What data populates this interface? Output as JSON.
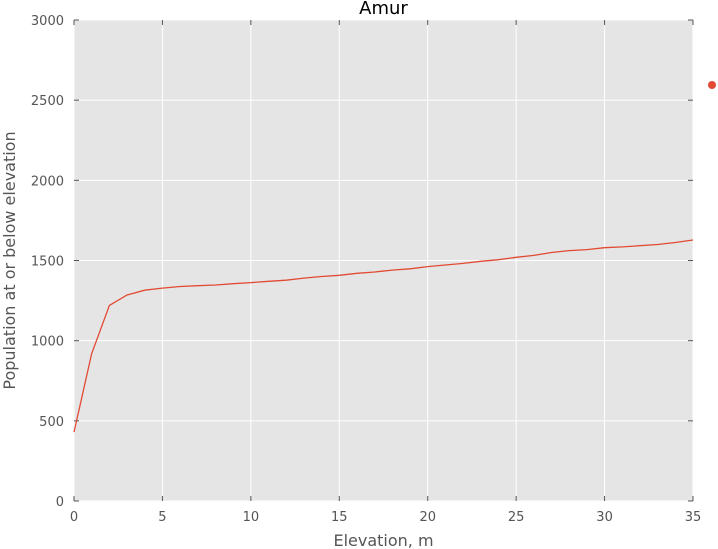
{
  "chart_data": {
    "type": "line",
    "title": "Amur",
    "xlabel": "Elevation, m",
    "ylabel": "Population at or below elevation",
    "xlim": [
      0,
      35
    ],
    "ylim": [
      0,
      3000
    ],
    "xticks": [
      "0",
      "5",
      "10",
      "15",
      "20",
      "25",
      "30",
      "35"
    ],
    "yticks": [
      "0",
      "500",
      "1000",
      "1500",
      "2000",
      "2500",
      "3000"
    ],
    "grid": true,
    "legend_marker_color": "#E24A33",
    "series": [
      {
        "color": "#E24A33",
        "x": [
          0,
          1,
          2,
          3,
          4,
          5,
          6,
          7,
          8,
          9,
          10,
          11,
          12,
          13,
          14,
          15,
          16,
          17,
          18,
          19,
          20,
          21,
          22,
          23,
          24,
          25,
          26,
          27,
          28,
          29,
          30,
          31,
          32,
          33,
          34,
          35
        ],
        "y": [
          430,
          920,
          1220,
          1285,
          1315,
          1328,
          1338,
          1343,
          1347,
          1355,
          1362,
          1370,
          1377,
          1390,
          1400,
          1408,
          1420,
          1428,
          1440,
          1448,
          1462,
          1472,
          1482,
          1495,
          1505,
          1520,
          1532,
          1550,
          1562,
          1568,
          1580,
          1585,
          1592,
          1600,
          1612,
          1628
        ]
      }
    ],
    "colors": {
      "plot_bg": "#E5E5E5",
      "grid": "#FFFFFF",
      "axis_text": "#555555"
    }
  }
}
